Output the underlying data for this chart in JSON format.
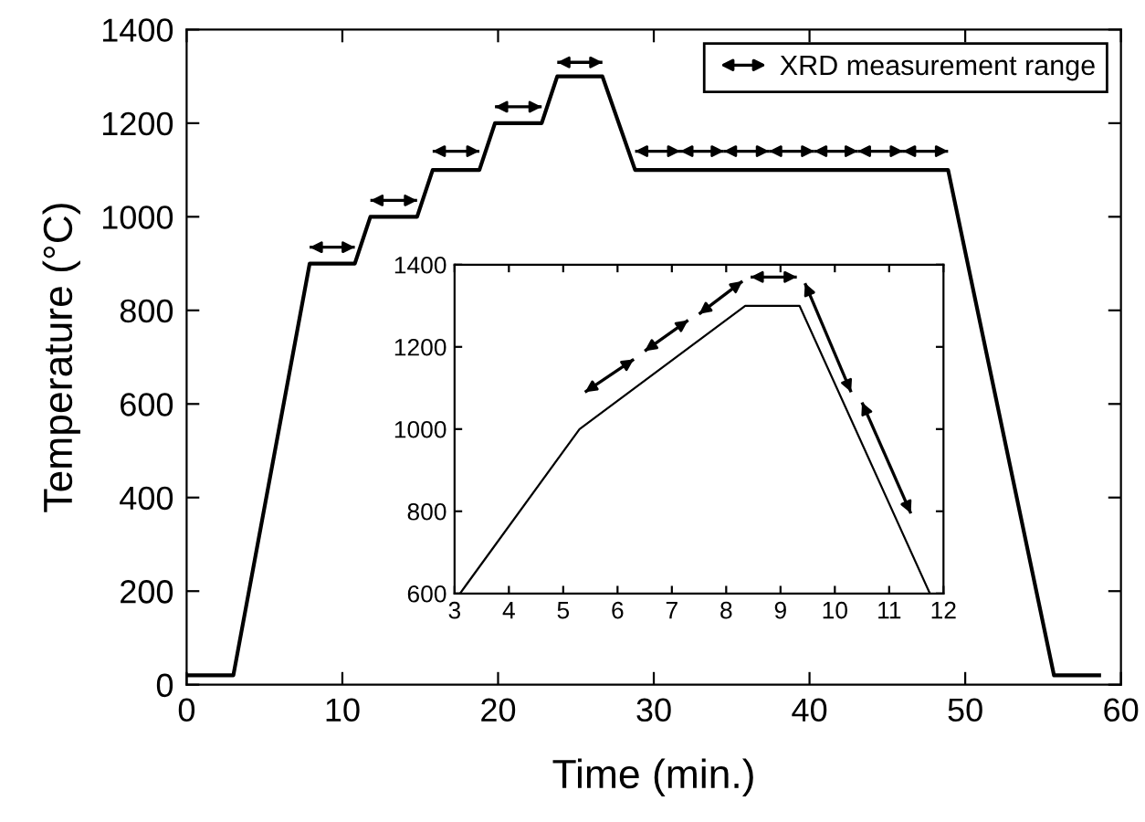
{
  "chart_data": [
    {
      "type": "line",
      "xlabel": "Time (min.)",
      "ylabel": "Temperature (°C)",
      "xlim": [
        0,
        60
      ],
      "ylim": [
        0,
        1400
      ],
      "xticks": [
        0,
        10,
        20,
        30,
        40,
        50,
        60
      ],
      "yticks": [
        0,
        200,
        400,
        600,
        800,
        1000,
        1200,
        1400
      ],
      "grid": false,
      "legend": "top right",
      "marker": "none",
      "line_style": "solid",
      "series": [
        {
          "type": "line",
          "color": "#000000",
          "x": [
            0,
            3,
            7.9,
            10.8,
            11.8,
            14.8,
            15.8,
            18.8,
            19.8,
            22.8,
            23.8,
            26.7,
            28.8,
            48.9,
            55.7,
            58.6
          ],
          "values": [
            20,
            20,
            900,
            900,
            1000,
            1000,
            1100,
            1100,
            1200,
            1200,
            1300,
            1300,
            1100,
            1100,
            20,
            20
          ]
        },
        {
          "type": "line",
          "name": "XRD measurement range",
          "color": "#000000",
          "x": [
            7.9,
            10.8,
            null,
            11.8,
            14.8,
            null,
            15.8,
            18.8,
            null,
            19.8,
            22.8,
            null,
            23.8,
            26.7,
            null,
            28.8,
            31.7,
            null,
            31.7,
            34.5,
            null,
            34.5,
            37.4,
            null,
            37.4,
            40.3,
            null,
            40.3,
            43.1,
            null,
            43.1,
            46.0,
            null,
            46.0,
            48.9
          ],
          "values": [
            935,
            935,
            null,
            1035,
            1035,
            null,
            1140,
            1140,
            null,
            1235,
            1235,
            null,
            1330,
            1330,
            null,
            1140,
            1140,
            null,
            1140,
            1140,
            null,
            1140,
            1140,
            null,
            1140,
            1140,
            null,
            1140,
            1140,
            null,
            1140,
            1140,
            null,
            1140,
            1140
          ]
        }
      ]
    },
    {
      "type": "line",
      "xlim": [
        3,
        12
      ],
      "ylim": [
        600,
        1400
      ],
      "xticks": [
        3,
        4,
        5,
        6,
        7,
        8,
        9,
        10,
        11,
        12
      ],
      "yticks": [
        600,
        800,
        1000,
        1200,
        1400
      ],
      "grid": false,
      "legend": false,
      "marker": "none",
      "line_style": "solid",
      "series": [
        {
          "type": "line",
          "color": "#000000",
          "x": [
            3.1,
            5.3,
            8.35,
            9.35,
            11.75
          ],
          "values": [
            600,
            1000,
            1300,
            1300,
            600
          ]
        },
        {
          "type": "line",
          "color": "#000000",
          "x": [
            5.4,
            6.3,
            null,
            6.5,
            7.3,
            null,
            7.5,
            8.3,
            null,
            8.45,
            9.3,
            null,
            9.45,
            10.3,
            null,
            10.5,
            11.4
          ],
          "values": [
            1090,
            1170,
            null,
            1190,
            1265,
            null,
            1280,
            1360,
            null,
            1370,
            1370,
            null,
            1355,
            1090,
            null,
            1065,
            795
          ]
        }
      ]
    }
  ]
}
